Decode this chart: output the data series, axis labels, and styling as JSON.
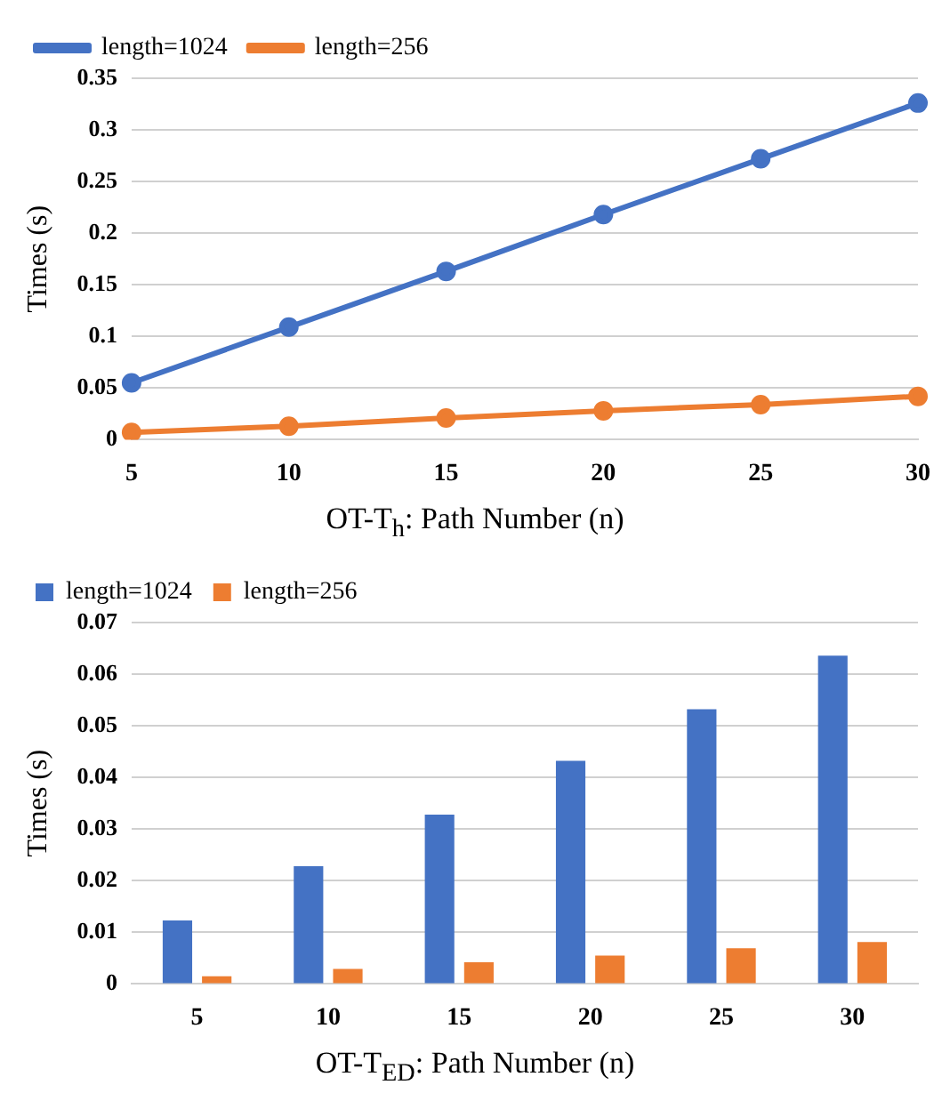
{
  "chart_data": [
    {
      "type": "line",
      "xlabel": "OT-T$_{h}$: Path Number (n)",
      "ylabel": "Times (s)",
      "categories": [
        "5",
        "10",
        "15",
        "20",
        "25",
        "30"
      ],
      "series": [
        {
          "name": "length=1024",
          "color": "#4472c4",
          "values": [
            0.055,
            0.109,
            0.163,
            0.218,
            0.272,
            0.326
          ]
        },
        {
          "name": "length=256",
          "color": "#ed7d31",
          "values": [
            0.007,
            0.013,
            0.021,
            0.028,
            0.034,
            0.042
          ]
        }
      ],
      "ylim": [
        0,
        0.35
      ],
      "yticks": [
        0,
        0.05,
        0.1,
        0.15,
        0.2,
        0.25,
        0.3,
        0.35
      ],
      "grid": "y",
      "legend": "top left",
      "marker": "circle"
    },
    {
      "type": "bar",
      "xlabel": "OT-T$_{ED}$: Path Number (n)",
      "ylabel": "Times (s)",
      "categories": [
        "5",
        "10",
        "15",
        "20",
        "25",
        "30"
      ],
      "series": [
        {
          "name": "length=1024",
          "color": "#4472c4",
          "values": [
            0.0123,
            0.0228,
            0.0328,
            0.0432,
            0.0532,
            0.0636
          ]
        },
        {
          "name": "length=256",
          "color": "#ed7d31",
          "values": [
            0.0015,
            0.0029,
            0.0042,
            0.0055,
            0.0069,
            0.0081
          ]
        }
      ],
      "ylim": [
        0,
        0.07
      ],
      "yticks": [
        0,
        0.01,
        0.02,
        0.03,
        0.04,
        0.05,
        0.06,
        0.07
      ],
      "grid": "y",
      "legend": "top left"
    }
  ]
}
